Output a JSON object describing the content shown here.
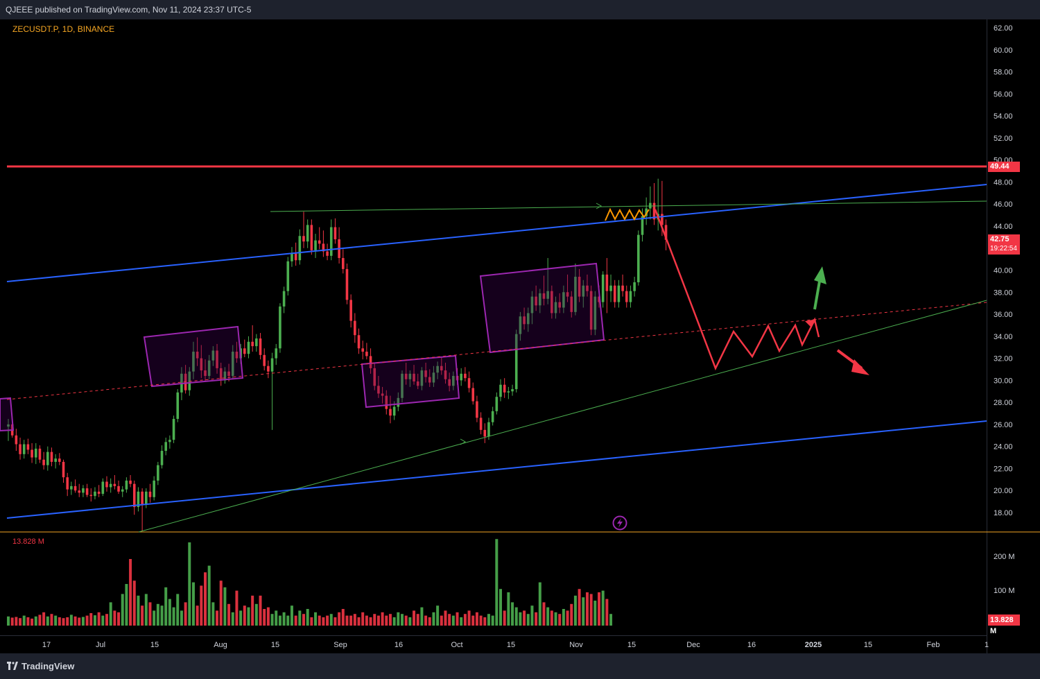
{
  "header": {
    "published": "QJEEE published on TradingView.com, Nov 11, 2024 23:37 UTC-5"
  },
  "symbol": "ZECUSDT.P, 1D, BINANCE",
  "volume_caption": "13.828 M",
  "last_price": {
    "price": "42.75",
    "countdown": "19:22:54"
  },
  "resistance": {
    "label": "49.44",
    "value": 49.44
  },
  "volume_last": "13.828 M",
  "footer": {
    "brand": "TradingView"
  },
  "colors": {
    "up": "#4caf50",
    "down": "#f23645",
    "channel": "#2962ff",
    "trend": "#4caf50",
    "box": "#9c27b0",
    "arrow": "#f23645"
  },
  "chart_data": {
    "type": "candlestick",
    "ylim": [
      16.3,
      63.0
    ],
    "y_ticks": [
      "62.00",
      "60.00",
      "58.00",
      "56.00",
      "54.00",
      "52.00",
      "50.00",
      "48.00",
      "46.00",
      "44.00",
      "42.00",
      "40.00",
      "38.00",
      "36.00",
      "34.00",
      "32.00",
      "30.00",
      "28.00",
      "26.00",
      "24.00",
      "22.00",
      "20.00",
      "18.00"
    ],
    "volume_ticks": [
      "200 M",
      "100 M"
    ],
    "x_ticks": [
      "17",
      "Jul",
      "15",
      "Aug",
      "15",
      "Sep",
      "16",
      "Oct",
      "15",
      "Nov",
      "15",
      "Dec",
      "16",
      "2025",
      "15",
      "Feb",
      "1"
    ],
    "series": [
      {
        "values": [
          [
            25.8,
            26.5,
            24.5,
            26.0
          ],
          [
            26.0,
            26.3,
            24.8,
            25.0
          ],
          [
            25.0,
            25.6,
            23.6,
            24.2
          ],
          [
            24.2,
            24.8,
            22.8,
            23.3
          ],
          [
            23.3,
            24.6,
            22.9,
            24.2
          ],
          [
            24.2,
            24.7,
            23.3,
            23.7
          ],
          [
            23.7,
            24.3,
            22.5,
            23.0
          ],
          [
            23.0,
            24.3,
            22.4,
            23.8
          ],
          [
            23.8,
            24.1,
            22.5,
            22.8
          ],
          [
            22.8,
            23.5,
            21.9,
            22.3
          ],
          [
            22.3,
            24.0,
            21.8,
            23.5
          ],
          [
            23.5,
            23.9,
            22.2,
            22.6
          ],
          [
            22.6,
            23.3,
            22.0,
            22.9
          ],
          [
            22.9,
            23.4,
            22.3,
            22.6
          ],
          [
            22.6,
            22.8,
            20.7,
            21.2
          ],
          [
            21.2,
            21.6,
            19.5,
            20.1
          ],
          [
            20.1,
            20.8,
            19.6,
            20.4
          ],
          [
            20.4,
            21.0,
            19.8,
            20.0
          ],
          [
            20.0,
            20.6,
            19.4,
            19.8
          ],
          [
            19.8,
            20.5,
            19.4,
            20.2
          ],
          [
            20.2,
            20.6,
            19.4,
            19.6
          ],
          [
            19.6,
            20.2,
            19.0,
            19.5
          ],
          [
            19.5,
            20.3,
            19.2,
            19.9
          ],
          [
            19.9,
            20.5,
            19.4,
            19.7
          ],
          [
            19.7,
            21.1,
            19.5,
            20.8
          ],
          [
            20.8,
            21.3,
            19.9,
            20.3
          ],
          [
            20.3,
            21.1,
            19.8,
            20.6
          ],
          [
            20.6,
            21.4,
            20.1,
            20.4
          ],
          [
            20.4,
            20.9,
            19.7,
            19.9
          ],
          [
            19.9,
            20.4,
            19.4,
            20.1
          ],
          [
            20.1,
            21.2,
            19.8,
            20.9
          ],
          [
            20.9,
            21.4,
            20.3,
            20.6
          ],
          [
            20.6,
            20.9,
            17.8,
            18.5
          ],
          [
            18.5,
            20.3,
            18.1,
            19.9
          ],
          [
            19.9,
            20.2,
            16.3,
            18.7
          ],
          [
            18.7,
            20.2,
            18.4,
            19.9
          ],
          [
            19.9,
            20.6,
            18.9,
            19.4
          ],
          [
            19.4,
            21.3,
            19.1,
            20.9
          ],
          [
            20.9,
            22.6,
            20.5,
            22.3
          ],
          [
            22.3,
            24.1,
            22.0,
            23.6
          ],
          [
            23.6,
            24.8,
            23.2,
            24.4
          ],
          [
            24.4,
            25.0,
            23.8,
            24.6
          ],
          [
            24.6,
            26.8,
            24.3,
            26.5
          ],
          [
            26.5,
            29.2,
            26.2,
            28.9
          ],
          [
            28.9,
            31.2,
            28.2,
            30.6
          ],
          [
            30.6,
            31.4,
            28.8,
            29.1
          ],
          [
            29.1,
            31.2,
            28.6,
            30.8
          ],
          [
            30.8,
            33.5,
            30.1,
            32.6
          ],
          [
            32.6,
            33.9,
            31.3,
            32.0
          ],
          [
            32.0,
            33.2,
            30.2,
            30.9
          ],
          [
            30.9,
            31.9,
            29.9,
            30.4
          ],
          [
            30.4,
            32.3,
            30.1,
            31.8
          ],
          [
            31.8,
            33.1,
            31.3,
            32.7
          ],
          [
            32.7,
            33.3,
            30.6,
            31.1
          ],
          [
            31.1,
            31.6,
            29.5,
            30.0
          ],
          [
            30.0,
            31.2,
            29.7,
            30.8
          ],
          [
            30.8,
            31.5,
            29.9,
            30.4
          ],
          [
            30.4,
            33.2,
            30.1,
            32.6
          ],
          [
            32.6,
            33.5,
            31.6,
            32.0
          ],
          [
            32.0,
            33.3,
            31.5,
            32.9
          ],
          [
            32.9,
            33.7,
            32.1,
            32.4
          ],
          [
            32.4,
            34.0,
            32.0,
            33.5
          ],
          [
            33.5,
            35.0,
            32.6,
            33.1
          ],
          [
            33.1,
            34.2,
            32.6,
            33.8
          ],
          [
            33.8,
            34.3,
            31.9,
            32.3
          ],
          [
            32.3,
            32.9,
            30.9,
            31.3
          ],
          [
            31.3,
            31.8,
            30.2,
            30.8
          ],
          [
            30.8,
            32.5,
            25.5,
            32.0
          ],
          [
            32.0,
            33.3,
            31.4,
            32.9
          ],
          [
            32.9,
            37.0,
            32.5,
            36.7
          ],
          [
            36.7,
            38.5,
            36.1,
            38.1
          ],
          [
            38.1,
            41.2,
            37.7,
            40.8
          ],
          [
            40.8,
            42.1,
            40.3,
            41.5
          ],
          [
            41.5,
            42.5,
            40.4,
            40.9
          ],
          [
            40.9,
            43.7,
            40.5,
            43.1
          ],
          [
            43.1,
            45.3,
            42.0,
            42.6
          ],
          [
            42.6,
            44.6,
            42.0,
            44.1
          ],
          [
            44.1,
            44.6,
            41.4,
            41.8
          ],
          [
            41.8,
            43.3,
            41.1,
            42.7
          ],
          [
            42.7,
            43.9,
            41.9,
            42.4
          ],
          [
            42.4,
            43.6,
            41.2,
            41.7
          ],
          [
            41.7,
            42.4,
            40.9,
            41.3
          ],
          [
            41.3,
            44.6,
            40.9,
            43.9
          ],
          [
            43.9,
            44.7,
            42.4,
            42.8
          ],
          [
            42.8,
            43.9,
            40.6,
            41.1
          ],
          [
            41.1,
            41.9,
            39.7,
            40.1
          ],
          [
            40.1,
            40.6,
            36.9,
            37.3
          ],
          [
            37.3,
            37.8,
            34.8,
            35.4
          ],
          [
            35.4,
            36.1,
            33.4,
            34.1
          ],
          [
            34.1,
            34.7,
            32.4,
            32.9
          ],
          [
            32.9,
            33.6,
            31.9,
            32.6
          ],
          [
            32.6,
            33.4,
            31.9,
            32.2
          ],
          [
            32.2,
            32.9,
            30.6,
            31.1
          ],
          [
            31.1,
            31.6,
            29.1,
            29.5
          ],
          [
            29.5,
            30.4,
            28.4,
            28.8
          ],
          [
            28.8,
            29.4,
            27.9,
            28.6
          ],
          [
            28.6,
            29.1,
            26.9,
            27.4
          ],
          [
            27.4,
            28.6,
            26.1,
            26.8
          ],
          [
            26.8,
            28.1,
            26.4,
            27.6
          ],
          [
            27.6,
            28.9,
            27.2,
            28.4
          ],
          [
            28.4,
            30.9,
            28.0,
            30.6
          ],
          [
            30.6,
            31.6,
            29.6,
            30.1
          ],
          [
            30.1,
            30.9,
            29.4,
            30.6
          ],
          [
            30.6,
            31.4,
            29.6,
            29.9
          ],
          [
            29.9,
            30.6,
            29.2,
            29.5
          ],
          [
            29.5,
            31.2,
            29.1,
            30.9
          ],
          [
            30.9,
            31.6,
            29.8,
            30.3
          ],
          [
            30.3,
            31.0,
            29.4,
            29.8
          ],
          [
            29.8,
            31.3,
            29.4,
            30.7
          ],
          [
            30.7,
            31.7,
            30.1,
            31.3
          ],
          [
            31.3,
            32.1,
            30.5,
            30.9
          ],
          [
            30.9,
            31.6,
            29.7,
            30.1
          ],
          [
            30.1,
            30.7,
            29.0,
            29.5
          ],
          [
            29.5,
            30.8,
            29.1,
            30.4
          ],
          [
            30.4,
            31.1,
            29.6,
            30.0
          ],
          [
            30.0,
            31.1,
            29.5,
            30.6
          ],
          [
            30.6,
            31.2,
            29.9,
            30.2
          ],
          [
            30.2,
            30.8,
            28.9,
            29.3
          ],
          [
            29.3,
            29.8,
            27.8,
            28.1
          ],
          [
            28.1,
            28.6,
            26.2,
            26.6
          ],
          [
            26.6,
            27.1,
            25.1,
            25.5
          ],
          [
            25.5,
            26.1,
            24.3,
            24.9
          ],
          [
            24.9,
            26.6,
            24.6,
            26.2
          ],
          [
            26.2,
            27.6,
            25.9,
            27.2
          ],
          [
            27.2,
            28.9,
            26.9,
            28.5
          ],
          [
            28.5,
            30.1,
            28.1,
            29.6
          ],
          [
            29.6,
            30.2,
            28.4,
            28.9
          ],
          [
            28.9,
            29.4,
            28.3,
            29.0
          ],
          [
            29.0,
            29.6,
            28.6,
            29.2
          ],
          [
            29.2,
            34.6,
            28.9,
            34.2
          ],
          [
            34.2,
            36.2,
            33.6,
            35.8
          ],
          [
            35.8,
            36.6,
            34.6,
            35.1
          ],
          [
            35.1,
            36.6,
            34.4,
            36.1
          ],
          [
            36.1,
            38.1,
            35.1,
            37.6
          ],
          [
            37.6,
            38.6,
            36.3,
            36.8
          ],
          [
            36.8,
            38.3,
            36.1,
            37.9
          ],
          [
            37.9,
            39.5,
            36.8,
            37.4
          ],
          [
            37.4,
            41.1,
            36.9,
            38.1
          ],
          [
            38.1,
            38.6,
            35.6,
            36.1
          ],
          [
            36.1,
            37.6,
            35.6,
            37.1
          ],
          [
            37.1,
            37.9,
            36.1,
            36.6
          ],
          [
            36.6,
            38.6,
            36.1,
            38.0
          ],
          [
            38.0,
            39.6,
            37.1,
            37.6
          ],
          [
            37.6,
            38.1,
            35.7,
            36.2
          ],
          [
            36.2,
            40.6,
            35.9,
            39.4
          ],
          [
            39.4,
            40.1,
            37.1,
            37.6
          ],
          [
            37.6,
            39.1,
            36.6,
            38.6
          ],
          [
            38.6,
            39.6,
            37.6,
            38.1
          ],
          [
            38.1,
            38.6,
            34.1,
            34.6
          ],
          [
            34.6,
            38.1,
            34.1,
            37.6
          ],
          [
            37.6,
            38.6,
            36.6,
            37.1
          ],
          [
            37.1,
            39.9,
            36.6,
            39.6
          ],
          [
            39.6,
            41.1,
            36.1,
            38.1
          ],
          [
            38.1,
            39.6,
            37.1,
            38.6
          ],
          [
            38.6,
            39.1,
            36.6,
            37.1
          ],
          [
            37.1,
            39.1,
            36.6,
            38.6
          ],
          [
            38.6,
            39.6,
            37.6,
            38.1
          ],
          [
            38.1,
            38.6,
            36.6,
            37.1
          ],
          [
            37.1,
            38.6,
            36.6,
            38.1
          ],
          [
            38.1,
            39.4,
            37.6,
            38.9
          ],
          [
            38.9,
            43.6,
            38.6,
            43.2
          ],
          [
            43.2,
            45.6,
            42.6,
            44.9
          ],
          [
            44.9,
            46.6,
            44.1,
            45.6
          ],
          [
            45.6,
            47.6,
            44.6,
            46.1
          ],
          [
            46.1,
            47.9,
            44.1,
            44.6
          ],
          [
            44.6,
            48.3,
            43.6,
            45.1
          ],
          [
            45.1,
            48.1,
            43.1,
            44.1
          ],
          [
            44.1,
            44.6,
            41.8,
            42.75
          ]
        ]
      }
    ],
    "volume": [
      5.5,
      4.8,
      5.2,
      4.5,
      6,
      5,
      4.2,
      5.5,
      6.5,
      8,
      5.5,
      7,
      6,
      5,
      4.5,
      5,
      6.5,
      5.5,
      4.8,
      5.2,
      6,
      7.5,
      6.2,
      8,
      6,
      7,
      14,
      9,
      8,
      19,
      25,
      40,
      27,
      18,
      12,
      19,
      14,
      9,
      13,
      12,
      23,
      16,
      11,
      19,
      9,
      14,
      50,
      26,
      12,
      24,
      32,
      36,
      14,
      9,
      27,
      23,
      13,
      8,
      21,
      9,
      12,
      11,
      18,
      13,
      18,
      10,
      11,
      7,
      9,
      6,
      8,
      6,
      12,
      6,
      9,
      7,
      10,
      5,
      8,
      6,
      5,
      6,
      7,
      5,
      8,
      10,
      6,
      6,
      7,
      5,
      8,
      6,
      5,
      7,
      6,
      8,
      6,
      7,
      5,
      8,
      7,
      6,
      5,
      9,
      7,
      11,
      6,
      5,
      8,
      12,
      6,
      9,
      7,
      6,
      8,
      5,
      7,
      9,
      6,
      8,
      6,
      5,
      7,
      6,
      52,
      22,
      9,
      20,
      14,
      11,
      8,
      9,
      7,
      12,
      8,
      26,
      14,
      11,
      9,
      8,
      7,
      10,
      9,
      13,
      18,
      22,
      17,
      20,
      19,
      15,
      20,
      21,
      16,
      7
    ]
  }
}
